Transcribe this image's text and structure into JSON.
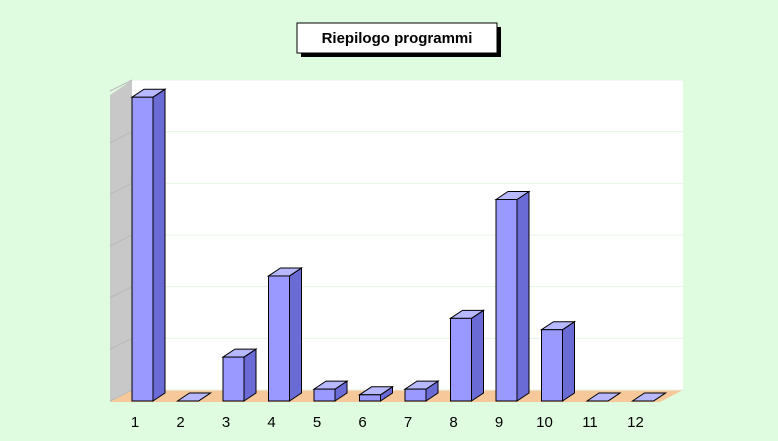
{
  "chart_data": {
    "type": "bar3d",
    "title": "Riepilogo programmi",
    "categories": [
      "1",
      "2",
      "3",
      "4",
      "5",
      "6",
      "7",
      "8",
      "9",
      "10",
      "11",
      "12"
    ],
    "values": [
      5.88,
      0,
      0.85,
      2.42,
      0.23,
      0.12,
      0.23,
      1.6,
      3.9,
      1.38,
      0,
      0
    ],
    "color": "#9999ff",
    "ylim": [
      0,
      6
    ],
    "yticks": [
      0,
      1,
      2,
      3,
      4,
      5,
      6
    ],
    "grid": true
  }
}
